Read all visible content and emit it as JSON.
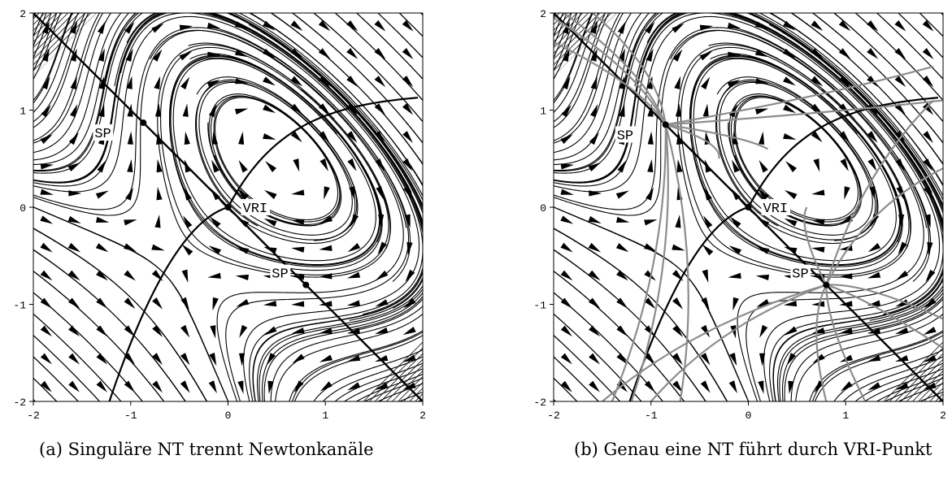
{
  "panels": [
    {
      "id": "a",
      "caption": "(a) Singuläre NT trennt Newtonkanäle",
      "x_ticks": [
        "-2",
        "-1",
        "0",
        "1",
        "2"
      ],
      "y_ticks": [
        "2",
        "1",
        "0",
        "-1",
        "-2"
      ],
      "xlim": [
        -2,
        2
      ],
      "ylim": [
        -2,
        2
      ],
      "points": [
        {
          "label": "SP",
          "x": -0.87,
          "y": 0.87
        },
        {
          "label": "VRI",
          "x": 0,
          "y": 0
        },
        {
          "label": "SP",
          "x": 0.8,
          "y": -0.8
        }
      ],
      "gray_trajectories": false
    },
    {
      "id": "b",
      "caption": "(b) Genau eine NT führt durch VRI-Punkt",
      "x_ticks": [
        "-2",
        "-1",
        "0",
        "1",
        "2"
      ],
      "y_ticks": [
        "2",
        "1",
        "0",
        "-1",
        "-2"
      ],
      "xlim": [
        -2,
        2
      ],
      "ylim": [
        -2,
        2
      ],
      "points": [
        {
          "label": "SP",
          "x": -0.85,
          "y": 0.85
        },
        {
          "label": "VRI",
          "x": 0,
          "y": 0
        },
        {
          "label": "SP",
          "x": 0.8,
          "y": -0.8
        }
      ],
      "gray_trajectories": true
    }
  ],
  "colors": {
    "field": "#000000",
    "gray": "#8c8c8c"
  }
}
